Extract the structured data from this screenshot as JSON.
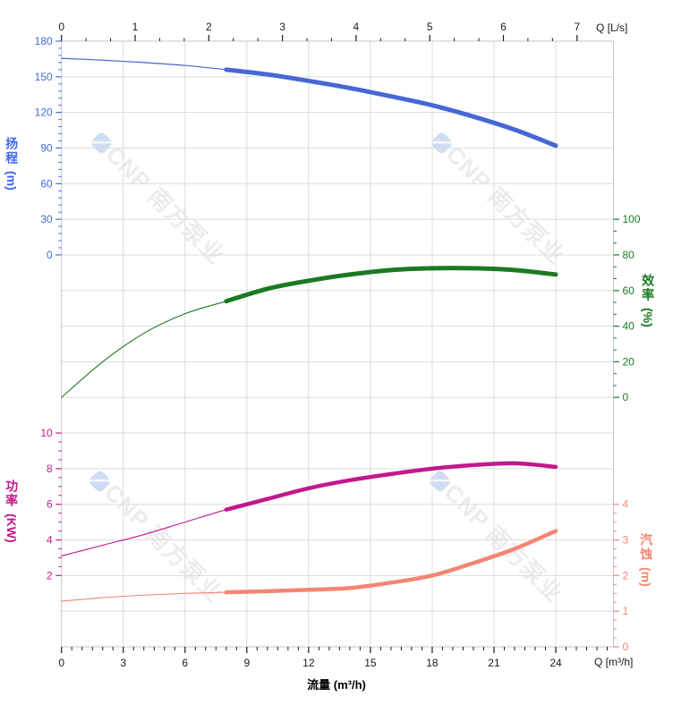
{
  "page": {
    "background": "#ffffff"
  },
  "watermark": {
    "text": "CNP 南方泵业",
    "logo_icon": "cnp-logo"
  },
  "axis_titles": {
    "q_top": "Q [L/s]",
    "q_bottom": "Q [m³/h]",
    "flow": "流量 (m³/h)",
    "head_chars": "扬程",
    "head_unit": "(m)",
    "efficiency_chars": "效率",
    "efficiency_unit": "(%)",
    "power_chars": "功率",
    "power_unit": "(KW)",
    "npsh_chars": "汽蚀",
    "npsh_unit": "(m)"
  },
  "chart_data": {
    "type": "line",
    "title": "",
    "grid": {
      "on": true,
      "color": "#DCDCDC",
      "border_color": "#C6C6C6"
    },
    "top_axis": {
      "label": "Q [L/s]",
      "ticks": [
        0,
        1,
        2,
        3,
        4,
        5,
        6,
        7
      ],
      "minor_step": 0.3333,
      "color": "#1a1a1a",
      "range": [
        0,
        7
      ]
    },
    "bottom_axis": {
      "label": "Q [m³/h]",
      "title": "流量 (m³/h)",
      "ticks": [
        0,
        3,
        6,
        9,
        12,
        15,
        18,
        21,
        24
      ],
      "minor_step": 0.5,
      "minor_to": 26.5,
      "color": "#1a1a1a",
      "range": [
        0,
        24
      ]
    },
    "y_axes": {
      "head": {
        "name": "扬程 (m)",
        "side": "left",
        "color": "#4169E1",
        "ticks": [
          180,
          150,
          120,
          90,
          60,
          30,
          0
        ],
        "minor_step": 6,
        "range": [
          0,
          180
        ],
        "rows": [
          0,
          6
        ]
      },
      "efficiency": {
        "name": "效率 (%)",
        "side": "right",
        "color": "#1A7A22",
        "ticks": [
          100,
          80,
          60,
          40,
          20,
          0
        ],
        "minor_step": 6.6667,
        "range": [
          0,
          100
        ],
        "rows": [
          5,
          10
        ]
      },
      "power": {
        "name": "功率 (KW)",
        "side": "left",
        "color": "#C2188C",
        "ticks": [
          10,
          8,
          6,
          4,
          2
        ],
        "minor_step": 0.5,
        "range": [
          0,
          10
        ],
        "rows": [
          11,
          16
        ]
      },
      "npsh": {
        "name": "汽蚀 (m)",
        "side": "right",
        "color": "#F48573",
        "ticks": [
          4,
          3,
          2,
          1,
          0
        ],
        "minor_step": 0.25,
        "range": [
          0,
          4
        ],
        "rows": [
          13,
          17
        ]
      }
    },
    "series": [
      {
        "name": "head",
        "axis": "head",
        "color": "#4667D4",
        "bold_from": 8,
        "width_thin": 1.2,
        "width_bold": 5,
        "points": [
          [
            0,
            165.5
          ],
          [
            2,
            164
          ],
          [
            4,
            162
          ],
          [
            6,
            159.5
          ],
          [
            8,
            156
          ],
          [
            10,
            152
          ],
          [
            12,
            146.5
          ],
          [
            14,
            140.5
          ],
          [
            16,
            133.5
          ],
          [
            18,
            126
          ],
          [
            20,
            116.5
          ],
          [
            22,
            105.5
          ],
          [
            24,
            92
          ]
        ]
      },
      {
        "name": "efficiency",
        "axis": "efficiency",
        "color": "#1A7A22",
        "bold_from": 8,
        "width_thin": 1.1,
        "width_bold": 5,
        "points": [
          [
            0,
            0
          ],
          [
            2,
            20
          ],
          [
            4,
            36
          ],
          [
            6,
            47
          ],
          [
            8,
            54
          ],
          [
            10,
            61
          ],
          [
            12,
            65.5
          ],
          [
            14,
            69
          ],
          [
            16,
            71.5
          ],
          [
            18,
            72.5
          ],
          [
            20,
            72.5
          ],
          [
            22,
            71.5
          ],
          [
            24,
            69
          ]
        ]
      },
      {
        "name": "power",
        "axis": "power",
        "color": "#C2188C",
        "bold_from": 8,
        "width_thin": 1.1,
        "width_bold": 4.5,
        "points": [
          [
            0,
            3.1
          ],
          [
            2,
            3.7
          ],
          [
            4,
            4.3
          ],
          [
            6,
            5.0
          ],
          [
            8,
            5.7
          ],
          [
            10,
            6.3
          ],
          [
            12,
            6.9
          ],
          [
            14,
            7.35
          ],
          [
            16,
            7.7
          ],
          [
            18,
            8.0
          ],
          [
            20,
            8.2
          ],
          [
            22,
            8.3
          ],
          [
            24,
            8.1
          ]
        ]
      },
      {
        "name": "npsh",
        "axis": "npsh",
        "color": "#F48573",
        "bold_from": 8,
        "width_thin": 1.1,
        "width_bold": 4.5,
        "points": [
          [
            0,
            1.28
          ],
          [
            2,
            1.38
          ],
          [
            4,
            1.45
          ],
          [
            6,
            1.5
          ],
          [
            8,
            1.53
          ],
          [
            10,
            1.56
          ],
          [
            12,
            1.6
          ],
          [
            14,
            1.65
          ],
          [
            16,
            1.8
          ],
          [
            18,
            2.0
          ],
          [
            20,
            2.35
          ],
          [
            22,
            2.75
          ],
          [
            24,
            3.25
          ]
        ]
      }
    ]
  }
}
